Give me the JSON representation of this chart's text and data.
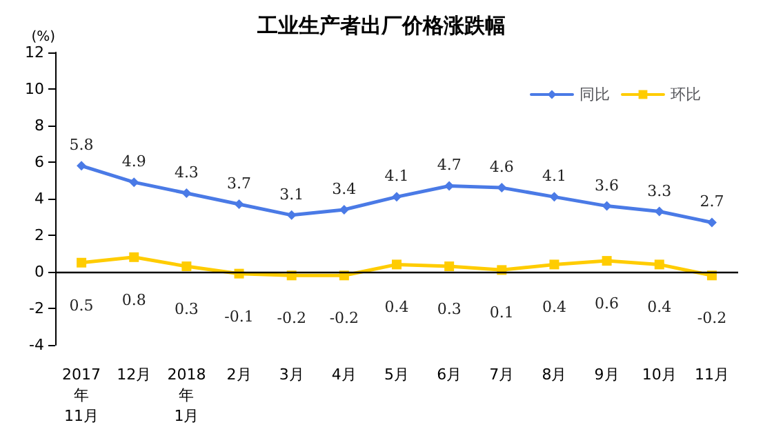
{
  "chart_data": {
    "type": "line",
    "title": "工业生产者出厂价格涨跌幅",
    "ylabel": "(%)",
    "categories": [
      "2017\n年\n11月",
      "12月",
      "2018\n年\n1月",
      "2月",
      "3月",
      "4月",
      "5月",
      "6月",
      "7月",
      "8月",
      "9月",
      "10月",
      "11月"
    ],
    "series": [
      {
        "name": "同比",
        "color": "#4a7ae6",
        "marker": "diamond",
        "values": [
          5.8,
          4.9,
          4.3,
          3.7,
          3.1,
          3.4,
          4.1,
          4.7,
          4.6,
          4.1,
          3.6,
          3.3,
          2.7
        ]
      },
      {
        "name": "环比",
        "color": "#ffcc00",
        "marker": "square",
        "values": [
          0.5,
          0.8,
          0.3,
          -0.1,
          -0.2,
          -0.2,
          0.4,
          0.3,
          0.1,
          0.4,
          0.6,
          0.4,
          -0.2
        ]
      }
    ],
    "ylim": [
      -4,
      12
    ],
    "yticks": [
      -4,
      -2,
      0,
      2,
      4,
      6,
      8,
      10,
      12
    ],
    "ref_lines": [
      {
        "axis": "y",
        "value": 0,
        "color": "#000000"
      }
    ],
    "grid": false,
    "legend": "top right",
    "data_labels": true,
    "line_style": "solid"
  }
}
